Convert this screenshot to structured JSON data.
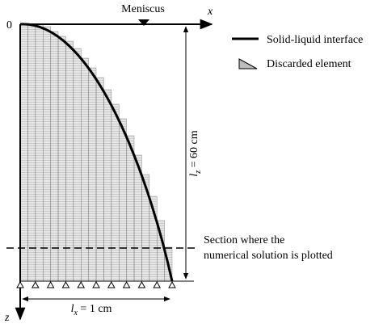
{
  "header": {
    "meniscus": "Meniscus",
    "x_axis": "x",
    "origin": "0",
    "z_axis": "z"
  },
  "legend": [
    {
      "label": "Solid-liquid interface"
    },
    {
      "label": "Discarded element"
    }
  ],
  "dimensions": {
    "height": {
      "symbol": "l",
      "subscript": "z",
      "text": " = 60 cm"
    },
    "width": {
      "symbol": "l",
      "subscript": "x",
      "text": " = 1 cm"
    }
  },
  "section": {
    "lines": [
      "Section where the",
      "numerical solution is plotted"
    ]
  }
}
